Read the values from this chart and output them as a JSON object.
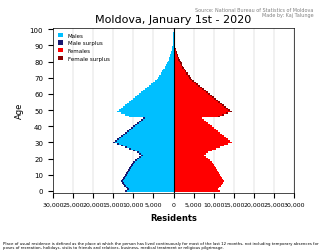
{
  "title": "Moldova, January 1st - 2020",
  "source_text": "Source: National Bureau of Statistics of Moldova\nMade by: Kaj Talunge",
  "xlabel": "Residents",
  "ylabel": "Age",
  "footnote": "Place of usual residence is defined as the place at which the person has lived continuously for most of the last 12 months, not including temporary absences for poses of recreation, holidays, visits to friends and relatives, business, medical treatment or religious pilgrimage.",
  "xlim": [
    -30000,
    30000
  ],
  "xticks": [
    -30000,
    -25000,
    -20000,
    -15000,
    -10000,
    -5000,
    0,
    5000,
    10000,
    15000,
    20000,
    25000,
    30000
  ],
  "xticklabels": [
    "30,000",
    "25,000",
    "20,000",
    "15,000",
    "10,000",
    "5,000",
    "0",
    "5,000",
    "10,000",
    "15,000",
    "20,000",
    "25,000",
    "30,000"
  ],
  "color_male": "#00BFFF",
  "color_male_surplus": "#191970",
  "color_female": "#FF0000",
  "color_female_surplus": "#8B0000",
  "ages": [
    0,
    1,
    2,
    3,
    4,
    5,
    6,
    7,
    8,
    9,
    10,
    11,
    12,
    13,
    14,
    15,
    16,
    17,
    18,
    19,
    20,
    21,
    22,
    23,
    24,
    25,
    26,
    27,
    28,
    29,
    30,
    31,
    32,
    33,
    34,
    35,
    36,
    37,
    38,
    39,
    40,
    41,
    42,
    43,
    44,
    45,
    46,
    47,
    48,
    49,
    50,
    51,
    52,
    53,
    54,
    55,
    56,
    57,
    58,
    59,
    60,
    61,
    62,
    63,
    64,
    65,
    66,
    67,
    68,
    69,
    70,
    71,
    72,
    73,
    74,
    75,
    76,
    77,
    78,
    79,
    80,
    81,
    82,
    83,
    84,
    85,
    86,
    87,
    88,
    89,
    90,
    91,
    92,
    93,
    94,
    95,
    96,
    97,
    98,
    99,
    100
  ],
  "males": [
    12000,
    11500,
    11800,
    12200,
    12500,
    12800,
    13000,
    12700,
    12500,
    12200,
    12000,
    11800,
    11500,
    11200,
    11000,
    10800,
    10500,
    10200,
    10000,
    9500,
    9000,
    8500,
    8000,
    8500,
    9000,
    10000,
    11000,
    12000,
    13000,
    14000,
    15000,
    14500,
    14000,
    13500,
    13000,
    12500,
    12000,
    11500,
    11000,
    10500,
    10000,
    9500,
    9000,
    8500,
    8000,
    7500,
    11000,
    12000,
    13000,
    14000,
    13500,
    13000,
    12500,
    12000,
    11500,
    11000,
    10500,
    10000,
    9500,
    9000,
    8500,
    8000,
    7500,
    7000,
    6500,
    6000,
    5500,
    5000,
    4500,
    4200,
    3800,
    3500,
    3200,
    3000,
    2800,
    2500,
    2200,
    2000,
    1800,
    1600,
    1400,
    1200,
    1000,
    900,
    800,
    700,
    600,
    500,
    400,
    300,
    200,
    150,
    100,
    80,
    60,
    40,
    20,
    10,
    5,
    2,
    1
  ],
  "females": [
    11500,
    11000,
    11200,
    11700,
    12000,
    12300,
    12500,
    12300,
    12000,
    11800,
    11500,
    11300,
    11000,
    10700,
    10500,
    10300,
    10000,
    9700,
    9500,
    9000,
    8500,
    8000,
    7500,
    8000,
    8500,
    9500,
    10500,
    11500,
    12500,
    13500,
    14500,
    14000,
    13500,
    13000,
    12500,
    12000,
    11500,
    11000,
    10500,
    10000,
    9500,
    9000,
    8500,
    8000,
    7500,
    7000,
    11500,
    12500,
    13500,
    14500,
    14000,
    13500,
    13000,
    12500,
    12000,
    11500,
    11000,
    10500,
    10000,
    9500,
    9000,
    8500,
    8000,
    7500,
    7000,
    6500,
    6000,
    5500,
    5000,
    4700,
    4300,
    4000,
    3700,
    3500,
    3200,
    2900,
    2600,
    2400,
    2200,
    2000,
    1800,
    1600,
    1400,
    1200,
    1050,
    900,
    780,
    650,
    530,
    400,
    300,
    220,
    160,
    120,
    90,
    65,
    40,
    25,
    15,
    8,
    3
  ],
  "age_labels": [
    0,
    10,
    20,
    30,
    40,
    50,
    60,
    70,
    80,
    90,
    100
  ]
}
